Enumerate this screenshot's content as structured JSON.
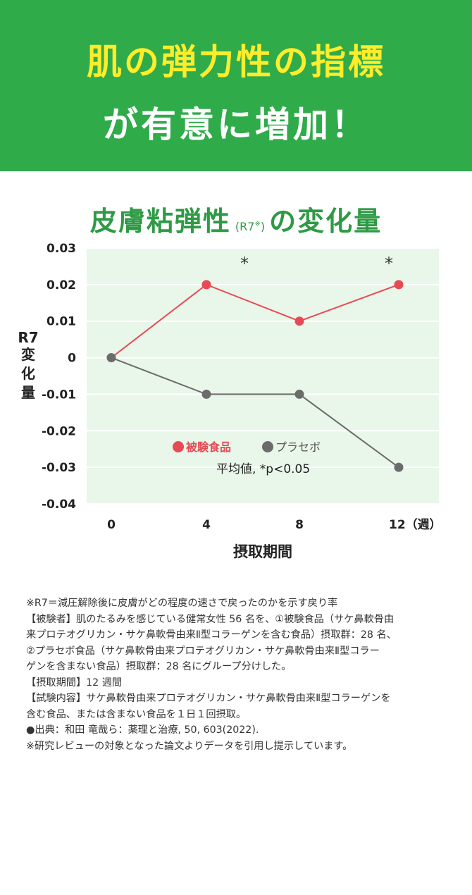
{
  "header": {
    "line1": "肌の弾力性の指標",
    "line2": "が有意に増加！"
  },
  "chart_title": {
    "main": "皮膚粘弾性",
    "sub": "(R7",
    "sub_mark": "※",
    "sub_close": ")",
    "tail": "の変化量"
  },
  "chart_data": {
    "type": "line",
    "x": [
      0,
      4,
      8,
      12
    ],
    "x_tick_labels": [
      "0",
      "4",
      "8",
      "12（週）"
    ],
    "xlabel": "摂取期間",
    "ylabel": "R7変化量",
    "ylabel_lines": [
      "R7",
      "変",
      "化",
      "量"
    ],
    "ylim": [
      -0.04,
      0.03
    ],
    "y_ticks": [
      "0.03",
      "0.02",
      "0.01",
      "0",
      "-0.01",
      "-0.02",
      "-0.03",
      "-0.04"
    ],
    "y_tick_values": [
      0.03,
      0.02,
      0.01,
      0,
      -0.01,
      -0.02,
      -0.03,
      -0.04
    ],
    "grid": true,
    "background": "#e9f6ea",
    "series": [
      {
        "name": "被験食品",
        "color": "#e84a55",
        "values": [
          0,
          0.02,
          0.01,
          0.02
        ]
      },
      {
        "name": "プラセボ",
        "color": "#6b6b6b",
        "values": [
          0,
          -0.01,
          -0.01,
          -0.03
        ]
      }
    ],
    "significance_marks": [
      {
        "x": 4,
        "label": "*"
      },
      {
        "x": 12,
        "label": "*"
      }
    ],
    "annotation": "平均値, *p<0.05",
    "legend_placement": "lower-center"
  },
  "notes": [
    "※R7＝減圧解除後に皮膚がどの程度の速さで戻ったのかを示す戻り率",
    "【被験者】肌のたるみを感じている健常女性 56 名を、①被験食品（サケ鼻軟骨由",
    "来プロテオグリカン・サケ鼻軟骨由来Ⅱ型コラーゲンを含む食品）摂取群：28 名、",
    "②プラセボ食品（サケ鼻軟骨由来プロテオグリカン・サケ鼻軟骨由来Ⅱ型コラー",
    "ゲンを含まない食品）摂取群：28 名にグループ分けした。",
    "【摂取期間】12 週間",
    "【試験内容】サケ鼻軟骨由来プロテオグリカン・サケ鼻軟骨由来Ⅱ型コラーゲンを",
    "含む食品、または含まない食品を１日１回摂取。",
    "●出典：和田 竜哉ら：薬理と治療, 50, 603(2022).",
    "※研究レビューの対象となった論文よりデータを引用し提示しています。"
  ]
}
